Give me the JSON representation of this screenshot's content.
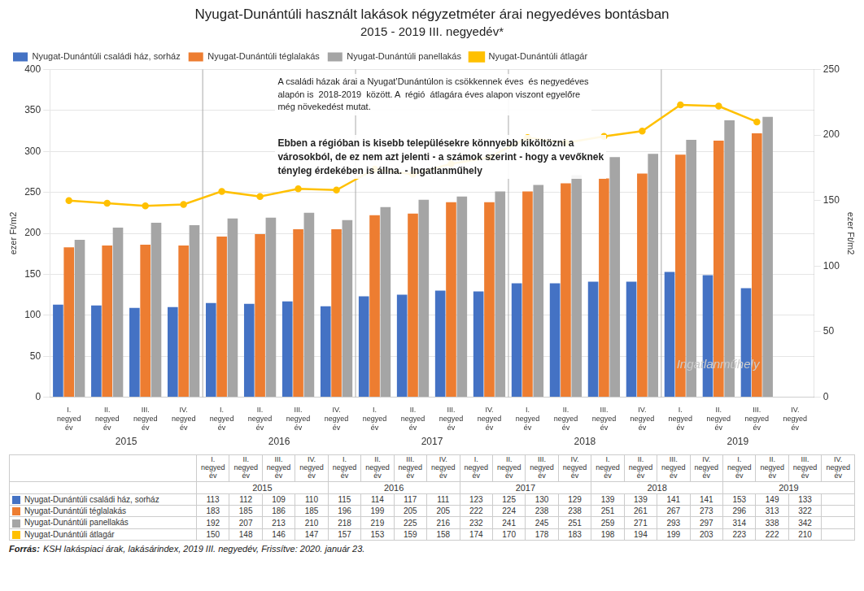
{
  "chart_data": {
    "type": "bar",
    "title": "Nyugat-Dunántúli használt lakások négyzetméter árai negyedéves bontásban",
    "subtitle": "2015 - 2019 III. negyedév*",
    "y_label": "ezer Ft/m2",
    "y2_label": "ezer Ft/m2",
    "categories": [
      "I.\nnegyed\név",
      "II.\nnegyed\név",
      "III.\nnegyed\név",
      "IV.\nnegyed\név",
      "I.\nnegyed\név",
      "II.\nnegyed\név",
      "III.\nnegyed\név",
      "IV.\nnegyed\név",
      "I.\nnegyed\név",
      "II.\nnegyed\név",
      "III.\nnegyed\név",
      "IV.\nnegyed\név",
      "I.\nnegyed\név",
      "II.\nnegyed\név",
      "III.\nnegyed\név",
      "IV.\nnegyed\név",
      "I.\nnegyed\név",
      "II.\nnegyed\név",
      "III.\nnegyed\név",
      "IV.\nnegyed\név"
    ],
    "year_groups": [
      {
        "label": "2015",
        "count": 4
      },
      {
        "label": "2016",
        "count": 4
      },
      {
        "label": "2017",
        "count": 4
      },
      {
        "label": "2018",
        "count": 4
      },
      {
        "label": "2019",
        "count": 4
      }
    ],
    "series": [
      {
        "name": "Nyugat-Dunántúli családi ház, sorház",
        "color": "#4472C4",
        "values": [
          113,
          112,
          109,
          110,
          115,
          114,
          117,
          111,
          123,
          125,
          130,
          129,
          139,
          139,
          141,
          141,
          153,
          149,
          133,
          null
        ]
      },
      {
        "name": "Nyugat-Dunántúli téglalakás",
        "color": "#ED7D31",
        "values": [
          183,
          185,
          186,
          185,
          196,
          199,
          205,
          205,
          222,
          224,
          238,
          238,
          251,
          261,
          267,
          273,
          296,
          313,
          322,
          null
        ]
      },
      {
        "name": "Nyugat-Dunántúli panellakás",
        "color": "#A5A5A5",
        "values": [
          192,
          207,
          213,
          210,
          218,
          219,
          225,
          216,
          232,
          241,
          245,
          251,
          259,
          271,
          293,
          297,
          314,
          338,
          342,
          null
        ]
      },
      {
        "name": "Nyugat-Dunántúli átlagár",
        "color": "#FFC000",
        "type": "line",
        "axis": "y2",
        "marker": "circle",
        "values": [
          150,
          148,
          146,
          147,
          157,
          153,
          159,
          158,
          174,
          170,
          178,
          183,
          198,
          194,
          199,
          203,
          223,
          222,
          210,
          null
        ]
      }
    ],
    "ylim": [
      0,
      400
    ],
    "yticks": [
      0,
      50,
      100,
      150,
      200,
      250,
      300,
      350,
      400
    ],
    "y2lim": [
      0,
      250
    ],
    "y2ticks": [
      0,
      50,
      100,
      150,
      200,
      250
    ],
    "grid": true,
    "legend": "upper left",
    "annotations": [
      "A családi házak árai a NyugatʼDunántúlon is csökkennek éves  és negyedéves\nalapón is  2018-2019  között. A  régió  átlagára éves alapon viszont egyelőre\nmég növekedést mutat.",
      "Ebben a régióban is kisebb településekre könnyebb kiköltözni a\nvárosokból, de ez nem azt jelenti - a számok szerint - hogy a vevőknek\ntényleg érdekében is állna. - Ingatlanműhely"
    ],
    "watermark": "Ingatlanműhely",
    "source_label": "Forrás:",
    "source": "KSH lakáspiaci árak, lakásárindex, 2019 III. negyedév, Frissítve: 2020. január 23."
  }
}
